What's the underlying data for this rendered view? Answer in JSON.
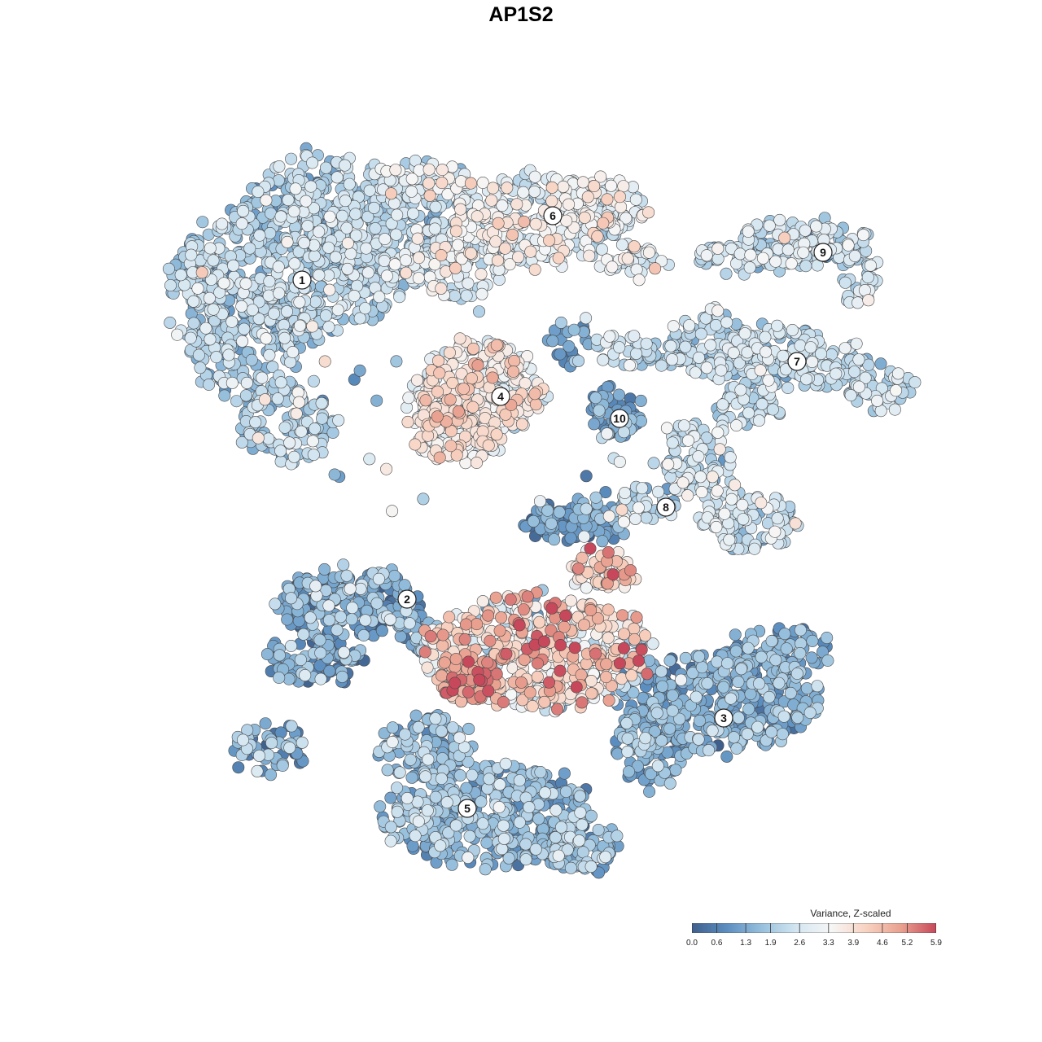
{
  "chart_data": {
    "type": "scatter",
    "title": "AP1S2",
    "colorbar": {
      "title": "Variance, Z-scaled",
      "ticks": [
        "0.0",
        "0.6",
        "1.3",
        "1.9",
        "2.6",
        "3.3",
        "3.9",
        "4.6",
        "5.2",
        "5.9"
      ],
      "range": [
        0.0,
        5.9
      ],
      "palette": [
        "#3f5f8c",
        "#5b8ec0",
        "#97c0dd",
        "#d4e6f1",
        "#f6f6f6",
        "#f8d2c1",
        "#e9a08f",
        "#c7485a"
      ]
    },
    "legend_position": "bottom-right",
    "clusters": [
      {
        "label": "1",
        "mean_value": 2.0,
        "spread": 0.55
      },
      {
        "label": "2",
        "mean_value": 1.3,
        "spread": 0.7
      },
      {
        "label": "3",
        "mean_value": 1.4,
        "spread": 0.5
      },
      {
        "label": "4",
        "mean_value": 3.4,
        "spread": 0.6
      },
      {
        "label": "5",
        "mean_value": 1.6,
        "spread": 0.55
      },
      {
        "label": "6",
        "mean_value": 2.9,
        "spread": 0.6
      },
      {
        "label": "7",
        "mean_value": 2.2,
        "spread": 0.5
      },
      {
        "label": "8",
        "mean_value": 2.4,
        "spread": 0.6
      },
      {
        "label": "9",
        "mean_value": 2.3,
        "spread": 0.55
      },
      {
        "label": "10",
        "mean_value": 1.1,
        "spread": 0.5
      }
    ],
    "xlabel": "",
    "ylabel": "",
    "grid": false
  }
}
